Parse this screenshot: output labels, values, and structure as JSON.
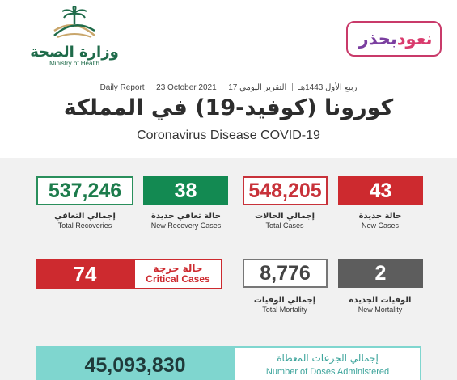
{
  "header": {
    "ministry_ar": "وزارة الصحة",
    "ministry_en": "Ministry of Health",
    "campaign_part1": "نعود",
    "campaign_part2": "بحذر",
    "report_ar": "التقرير اليومي",
    "report_en": "Daily Report",
    "date_hijri": "17 ربيع الأول 1443هـ",
    "date_gregorian": "23 October 2021",
    "title_ar": "كورونا (كوفيد-19) في المملكة",
    "title_en": "Coronavirus Disease COVID-19"
  },
  "stats": {
    "total_recoveries": {
      "value": "537,246",
      "label_ar": "إجمالي التعافي",
      "label_en": "Total Recoveries"
    },
    "new_recoveries": {
      "value": "38",
      "label_ar": "حالة تعافي جديدة",
      "label_en": "New Recovery Cases"
    },
    "total_cases": {
      "value": "548,205",
      "label_ar": "إجمالي الحالات",
      "label_en": "Total Cases"
    },
    "new_cases": {
      "value": "43",
      "label_ar": "حالة جديدة",
      "label_en": "New Cases"
    },
    "critical": {
      "value": "74",
      "label_ar": "حالة حرجة",
      "label_en": "Critical Cases"
    },
    "total_mortality": {
      "value": "8,776",
      "label_ar": "إجمالي الوفيات",
      "label_en": "Total Mortality"
    },
    "new_mortality": {
      "value": "2",
      "label_ar": "الوفيات الجديدة",
      "label_en": "New Mortality"
    },
    "doses": {
      "value": "45,093,830",
      "label_ar": "إجمالي الجرعات المعطاة",
      "label_en": "Number of Doses Administered"
    }
  },
  "colors": {
    "green": "#138a52",
    "red": "#cd2a2f",
    "gray": "#5d5d5d",
    "teal": "#7fd6cf",
    "campaign_pink": "#d93b6d",
    "campaign_purple": "#7b3fa0"
  },
  "icons": {
    "ministry_logo": "palm-swords-emblem"
  }
}
